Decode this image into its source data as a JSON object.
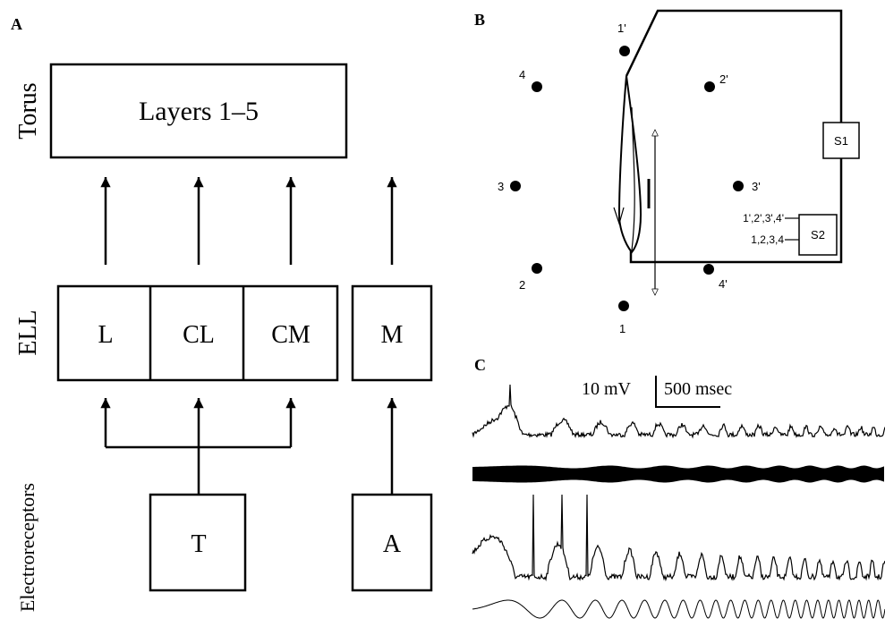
{
  "panels": {
    "a": {
      "label": "A",
      "torus_label": "Torus",
      "torus_box": "Layers 1–5",
      "ell_label": "ELL",
      "ell_boxes": [
        "L",
        "CL",
        "CM",
        "M"
      ],
      "receptor_label": "Electroreceptors",
      "receptor_boxes": [
        "T",
        "A"
      ]
    },
    "b": {
      "label": "B",
      "electrodes": [
        "1'",
        "2'",
        "3'",
        "4'",
        "1",
        "2",
        "3",
        "4"
      ],
      "s1": "S1",
      "s2": "S2",
      "s2_inputs": [
        "1',2',3',4'",
        "1,2,3,4"
      ]
    },
    "c": {
      "label": "C",
      "scale_voltage": "10 mV",
      "scale_time": "500 msec"
    }
  }
}
